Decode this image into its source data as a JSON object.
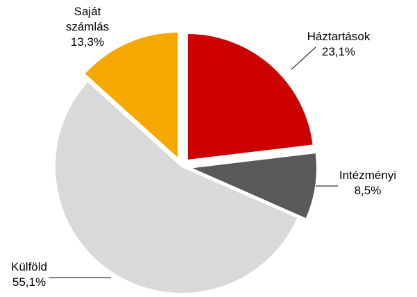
{
  "chart_data": {
    "type": "pie",
    "categories": [
      "Háztartások",
      "Intézményi",
      "Külföld",
      "Saját számlás"
    ],
    "values": [
      23.1,
      8.5,
      55.1,
      13.3
    ],
    "value_labels": [
      "23,1%",
      "8,5%",
      "55,1%",
      "13,3%"
    ],
    "colors": [
      "#cc0000",
      "#595959",
      "#d9d9d9",
      "#f5a800"
    ]
  }
}
